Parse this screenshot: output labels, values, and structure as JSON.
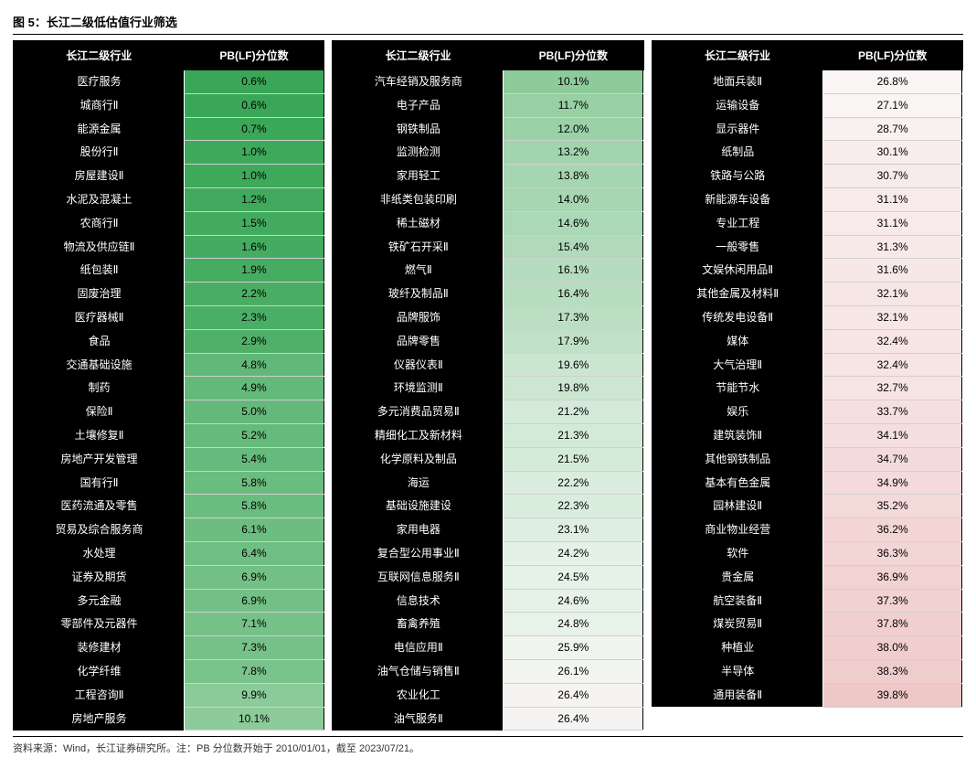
{
  "figure_title": "图 5：长江二级低估值行业筛选",
  "headers": {
    "name": "长江二级行业",
    "value": "PB(LF)分位数"
  },
  "footnote": "资料来源：Wind，长江证券研究所。注：PB 分位数开始于 2010/01/01，截至 2023/07/21。",
  "colors": {
    "header_bg": "#000000",
    "header_fg": "#ffffff",
    "name_bg": "#000000",
    "name_fg": "#ffffff",
    "grid_border": "#d0d0d0",
    "color_stops": [
      {
        "pct": 0.6,
        "hex": "#3aa758"
      },
      {
        "pct": 5.0,
        "hex": "#64b97a"
      },
      {
        "pct": 10.0,
        "hex": "#8ccb9a"
      },
      {
        "pct": 15.0,
        "hex": "#aed9b8"
      },
      {
        "pct": 20.0,
        "hex": "#cde7d2"
      },
      {
        "pct": 25.0,
        "hex": "#e8f3ea"
      },
      {
        "pct": 27.0,
        "hex": "#faf5f5"
      },
      {
        "pct": 31.0,
        "hex": "#f8eaea"
      },
      {
        "pct": 35.0,
        "hex": "#f4dada"
      },
      {
        "pct": 40.0,
        "hex": "#eec6c6"
      }
    ]
  },
  "panels": [
    {
      "rows": [
        {
          "name": "医疗服务",
          "pct": 0.6
        },
        {
          "name": "城商行Ⅱ",
          "pct": 0.6
        },
        {
          "name": "能源金属",
          "pct": 0.7
        },
        {
          "name": "股份行Ⅱ",
          "pct": 1.0
        },
        {
          "name": "房屋建设Ⅱ",
          "pct": 1.0
        },
        {
          "name": "水泥及混凝土",
          "pct": 1.2
        },
        {
          "name": "农商行Ⅱ",
          "pct": 1.5
        },
        {
          "name": "物流及供应链Ⅱ",
          "pct": 1.6
        },
        {
          "name": "纸包装Ⅱ",
          "pct": 1.9
        },
        {
          "name": "固废治理",
          "pct": 2.2
        },
        {
          "name": "医疗器械Ⅱ",
          "pct": 2.3
        },
        {
          "name": "食品",
          "pct": 2.9
        },
        {
          "name": "交通基础设施",
          "pct": 4.8
        },
        {
          "name": "制药",
          "pct": 4.9
        },
        {
          "name": "保险Ⅱ",
          "pct": 5.0
        },
        {
          "name": "土壤修复Ⅱ",
          "pct": 5.2
        },
        {
          "name": "房地产开发管理",
          "pct": 5.4
        },
        {
          "name": "国有行Ⅱ",
          "pct": 5.8
        },
        {
          "name": "医药流通及零售",
          "pct": 5.8
        },
        {
          "name": "贸易及综合服务商",
          "pct": 6.1
        },
        {
          "name": "水处理",
          "pct": 6.4
        },
        {
          "name": "证券及期货",
          "pct": 6.9
        },
        {
          "name": "多元金融",
          "pct": 6.9
        },
        {
          "name": "零部件及元器件",
          "pct": 7.1
        },
        {
          "name": "装修建材",
          "pct": 7.3
        },
        {
          "name": "化学纤维",
          "pct": 7.8
        },
        {
          "name": "工程咨询Ⅱ",
          "pct": 9.9
        },
        {
          "name": "房地产服务",
          "pct": 10.1
        }
      ]
    },
    {
      "rows": [
        {
          "name": "汽车经销及服务商",
          "pct": 10.1
        },
        {
          "name": "电子产品",
          "pct": 11.7
        },
        {
          "name": "钢铁制品",
          "pct": 12.0
        },
        {
          "name": "监测检测",
          "pct": 13.2
        },
        {
          "name": "家用轻工",
          "pct": 13.8
        },
        {
          "name": "非纸类包装印刷",
          "pct": 14.0
        },
        {
          "name": "稀土磁材",
          "pct": 14.6
        },
        {
          "name": "铁矿石开采Ⅱ",
          "pct": 15.4
        },
        {
          "name": "燃气Ⅱ",
          "pct": 16.1
        },
        {
          "name": "玻纤及制品Ⅱ",
          "pct": 16.4
        },
        {
          "name": "品牌服饰",
          "pct": 17.3
        },
        {
          "name": "品牌零售",
          "pct": 17.9
        },
        {
          "name": "仪器仪表Ⅱ",
          "pct": 19.6
        },
        {
          "name": "环境监测Ⅱ",
          "pct": 19.8
        },
        {
          "name": "多元消费品贸易Ⅱ",
          "pct": 21.2
        },
        {
          "name": "精细化工及新材料",
          "pct": 21.3
        },
        {
          "name": "化学原料及制品",
          "pct": 21.5
        },
        {
          "name": "海运",
          "pct": 22.2
        },
        {
          "name": "基础设施建设",
          "pct": 22.3
        },
        {
          "name": "家用电器",
          "pct": 23.1
        },
        {
          "name": "复合型公用事业Ⅱ",
          "pct": 24.2
        },
        {
          "name": "互联网信息服务Ⅱ",
          "pct": 24.5
        },
        {
          "name": "信息技术",
          "pct": 24.6
        },
        {
          "name": "畜禽养殖",
          "pct": 24.8
        },
        {
          "name": "电信应用Ⅱ",
          "pct": 25.9
        },
        {
          "name": "油气仓储与销售Ⅱ",
          "pct": 26.1
        },
        {
          "name": "农业化工",
          "pct": 26.4
        },
        {
          "name": "油气服务Ⅱ",
          "pct": 26.4
        }
      ]
    },
    {
      "rows": [
        {
          "name": "地面兵装Ⅱ",
          "pct": 26.8
        },
        {
          "name": "运输设备",
          "pct": 27.1
        },
        {
          "name": "显示器件",
          "pct": 28.7
        },
        {
          "name": "纸制品",
          "pct": 30.1
        },
        {
          "name": "铁路与公路",
          "pct": 30.7
        },
        {
          "name": "新能源车设备",
          "pct": 31.1
        },
        {
          "name": "专业工程",
          "pct": 31.1
        },
        {
          "name": "一般零售",
          "pct": 31.3
        },
        {
          "name": "文娱休闲用品Ⅱ",
          "pct": 31.6
        },
        {
          "name": "其他金属及材料Ⅱ",
          "pct": 32.1
        },
        {
          "name": "传统发电设备Ⅱ",
          "pct": 32.1
        },
        {
          "name": "媒体",
          "pct": 32.4
        },
        {
          "name": "大气治理Ⅱ",
          "pct": 32.4
        },
        {
          "name": "节能节水",
          "pct": 32.7
        },
        {
          "name": "娱乐",
          "pct": 33.7
        },
        {
          "name": "建筑装饰Ⅱ",
          "pct": 34.1
        },
        {
          "name": "其他钢铁制品",
          "pct": 34.7
        },
        {
          "name": "基本有色金属",
          "pct": 34.9
        },
        {
          "name": "园林建设Ⅱ",
          "pct": 35.2
        },
        {
          "name": "商业物业经营",
          "pct": 36.2
        },
        {
          "name": "软件",
          "pct": 36.3
        },
        {
          "name": "贵金属",
          "pct": 36.9
        },
        {
          "name": "航空装备Ⅱ",
          "pct": 37.3
        },
        {
          "name": "煤炭贸易Ⅱ",
          "pct": 37.8
        },
        {
          "name": "种植业",
          "pct": 38.0
        },
        {
          "name": "半导体",
          "pct": 38.3
        },
        {
          "name": "通用装备Ⅱ",
          "pct": 39.8
        }
      ]
    }
  ]
}
